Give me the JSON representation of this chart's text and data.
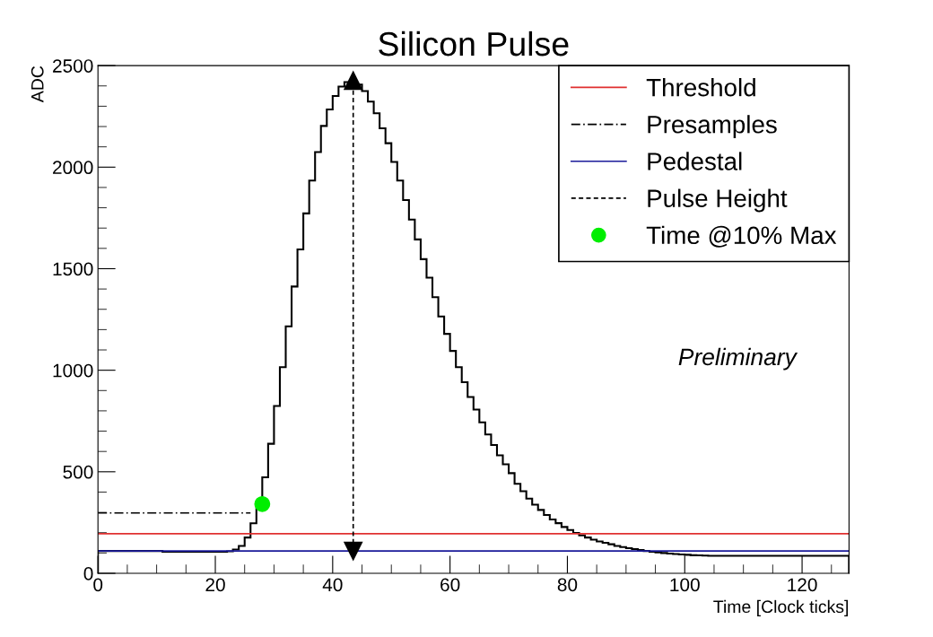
{
  "chart_data": {
    "type": "histogram",
    "title": "Silicon Pulse",
    "xlabel": "Time [Clock ticks]",
    "ylabel": "ADC",
    "color": "#000000",
    "bins": [
      0,
      1,
      2,
      3,
      4,
      5,
      6,
      7,
      8,
      9,
      10,
      11,
      12,
      13,
      14,
      15,
      16,
      17,
      18,
      19,
      20,
      21,
      22,
      23,
      24,
      25,
      26,
      27,
      28,
      29,
      30,
      31,
      32,
      33,
      34,
      35,
      36,
      37,
      38,
      39,
      40,
      41,
      42,
      43,
      44,
      45,
      46,
      47,
      48,
      49,
      50,
      51,
      52,
      53,
      54,
      55,
      56,
      57,
      58,
      59,
      60,
      61,
      62,
      63,
      64,
      65,
      66,
      67,
      68,
      69,
      70,
      71,
      72,
      73,
      74,
      75,
      76,
      77,
      78,
      79,
      80,
      81,
      82,
      83,
      84,
      85,
      86,
      87,
      88,
      89,
      90,
      91,
      92,
      93,
      94,
      95,
      96,
      97,
      98,
      99,
      100,
      101,
      102,
      103,
      104,
      105,
      106,
      107,
      108,
      109,
      110,
      111,
      112,
      113,
      114,
      115,
      116,
      117,
      118,
      119,
      120,
      121,
      122,
      123,
      124,
      125,
      126,
      127,
      128
    ],
    "values": [
      110,
      110,
      110,
      110,
      110,
      110,
      110,
      110,
      110,
      110,
      110,
      106,
      106,
      106,
      106,
      106,
      106,
      106,
      106,
      106,
      106,
      106,
      108,
      117,
      135,
      176,
      246,
      320,
      473,
      638,
      824,
      1015,
      1216,
      1412,
      1595,
      1772,
      1934,
      2074,
      2203,
      2284,
      2350,
      2397,
      2419,
      2426,
      2407,
      2375,
      2323,
      2265,
      2191,
      2118,
      2026,
      1934,
      1838,
      1742,
      1644,
      1547,
      1456,
      1360,
      1265,
      1179,
      1095,
      1015,
      941,
      868,
      806,
      743,
      684,
      632,
      581,
      537,
      493,
      441,
      404,
      368,
      338,
      312,
      287,
      265,
      247,
      228,
      213,
      199,
      187,
      176,
      166,
      157,
      150,
      143,
      135,
      129,
      124,
      119,
      115,
      110,
      106,
      103,
      100,
      97,
      95,
      93,
      91,
      89,
      88,
      87,
      86,
      86,
      86,
      86,
      86,
      86,
      86,
      86,
      86,
      86,
      86,
      86,
      86,
      86,
      86,
      86,
      86,
      86,
      86,
      86,
      86,
      86,
      86,
      86
    ],
    "series": [
      {
        "name": "Threshold",
        "type": "line",
        "color": "#e03030",
        "line_style": "solid",
        "marker": "none",
        "x": [
          0,
          128
        ],
        "values": [
          195,
          195
        ]
      },
      {
        "name": "Presamples",
        "type": "line",
        "color": "#000000",
        "line_style": "dashdot",
        "marker": "none",
        "x": [
          0,
          26
        ],
        "values": [
          297,
          297
        ]
      },
      {
        "name": "Pedestal",
        "type": "line",
        "color": "#1a1a9a",
        "line_style": "solid",
        "marker": "none",
        "x": [
          0,
          128
        ],
        "values": [
          110,
          110
        ]
      },
      {
        "name": "Pulse Height",
        "type": "line",
        "color": "#000000",
        "line_style": "dashed",
        "marker": "triangle",
        "x": [
          43.5,
          43.5
        ],
        "values": [
          110,
          2426
        ]
      },
      {
        "name": "Time @10% Max",
        "type": "scatter",
        "color": "#00ee00",
        "marker": "circle",
        "x": [
          28
        ],
        "values": [
          341
        ]
      }
    ],
    "annotations": [
      "Preliminary"
    ],
    "xlim": [
      0,
      128
    ],
    "ylim": [
      0,
      2500
    ],
    "xticks": [
      0,
      20,
      40,
      60,
      80,
      100,
      120
    ],
    "yticks": [
      0,
      500,
      1000,
      1500,
      2000,
      2500
    ],
    "grid": false,
    "legend": "top right"
  }
}
